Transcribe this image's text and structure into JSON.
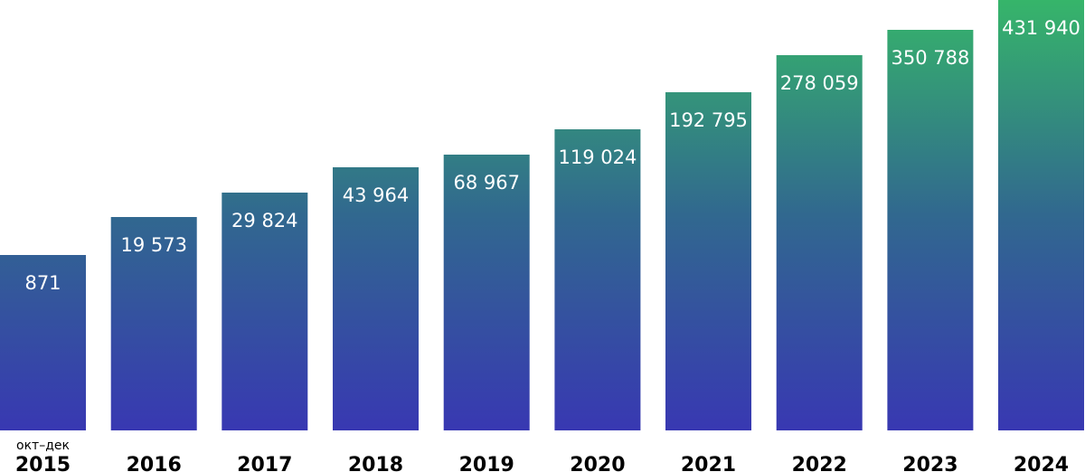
{
  "chart_data": {
    "type": "bar",
    "categories": [
      "2015",
      "2016",
      "2017",
      "2018",
      "2019",
      "2020",
      "2021",
      "2022",
      "2023",
      "2024"
    ],
    "category_notes": [
      "окт–дек",
      "",
      "",
      "",
      "",
      "",
      "",
      "",
      "",
      ""
    ],
    "values": [
      871,
      19573,
      29824,
      43964,
      68967,
      119024,
      192795,
      278059,
      350788,
      431940
    ],
    "value_labels": [
      "871",
      "19 573",
      "29 824",
      "43 964",
      "68 967",
      "119 024",
      "192 795",
      "278 059",
      "350 788",
      "431 940"
    ],
    "title": "",
    "xlabel": "",
    "ylabel": "",
    "grid": false,
    "legend": "none",
    "colors": {
      "bar_bottom": "#3838b2",
      "bar_mid": "#31688f",
      "bar_top": "#36b56a"
    }
  }
}
